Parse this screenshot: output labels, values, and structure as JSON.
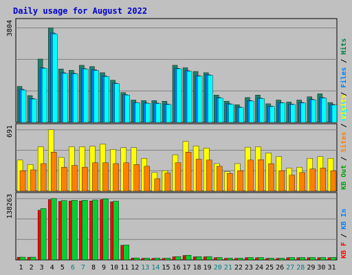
{
  "title": "Daily usage for August 2022",
  "colors": {
    "background": "#c0c0c0",
    "title": "#0000cc",
    "hits": "#008040",
    "files": "#0080ff",
    "pages": "#00ffff",
    "visits": "#ffff00",
    "sites": "#ff8000",
    "kb_in": "#0080ff",
    "kb_out": "#00a000",
    "kb_f": "#ff0000",
    "weekend_label": "#008080"
  },
  "chart_data": [
    {
      "type": "bar",
      "panel": "hits-files-pages",
      "max_label": "3804",
      "categories": [
        "1",
        "2",
        "3",
        "4",
        "5",
        "6",
        "7",
        "8",
        "9",
        "10",
        "11",
        "12",
        "13",
        "14",
        "15",
        "16",
        "17",
        "18",
        "19",
        "20",
        "21",
        "22",
        "23",
        "24",
        "25",
        "26",
        "27",
        "28",
        "29",
        "30",
        "31"
      ],
      "weekend_days": [
        "6",
        "7",
        "13",
        "14",
        "20",
        "21",
        "27",
        "28"
      ],
      "right_labels": [
        {
          "text": "Hits",
          "color": "#008040"
        },
        {
          "text": "Files",
          "color": "#0080ff"
        },
        {
          "text": "Pages",
          "color": "#00ffff"
        }
      ],
      "ylim": [
        0,
        3804
      ],
      "series": [
        {
          "name": "Hits",
          "color": "#20806a",
          "values": [
            1450,
            1080,
            2550,
            3804,
            2150,
            2100,
            2300,
            2250,
            2000,
            1700,
            1200,
            900,
            880,
            880,
            850,
            2300,
            2200,
            2050,
            2000,
            1100,
            850,
            710,
            1000,
            1100,
            750,
            900,
            820,
            900,
            1030,
            1150,
            800
          ]
        },
        {
          "name": "Files",
          "color": "#0080ff",
          "values": [
            1330,
            960,
            2200,
            3600,
            2000,
            1980,
            2170,
            2120,
            1870,
            1580,
            1120,
            800,
            780,
            780,
            740,
            2180,
            2080,
            1880,
            1920,
            1000,
            750,
            620,
            880,
            980,
            660,
            800,
            740,
            800,
            930,
            1000,
            720
          ]
        },
        {
          "name": "Pages",
          "color": "#00ffff",
          "values": [
            1300,
            940,
            2180,
            3560,
            1970,
            1960,
            2150,
            2090,
            1850,
            1560,
            1100,
            790,
            770,
            760,
            720,
            2160,
            2060,
            1860,
            1900,
            980,
            730,
            600,
            860,
            960,
            640,
            780,
            720,
            780,
            910,
            980,
            700
          ]
        }
      ]
    },
    {
      "type": "bar",
      "panel": "visits-sites",
      "max_label": "691",
      "categories": [
        "1",
        "2",
        "3",
        "4",
        "5",
        "6",
        "7",
        "8",
        "9",
        "10",
        "11",
        "12",
        "13",
        "14",
        "15",
        "16",
        "17",
        "18",
        "19",
        "20",
        "21",
        "22",
        "23",
        "24",
        "25",
        "26",
        "27",
        "28",
        "29",
        "30",
        "31"
      ],
      "right_labels": [
        {
          "text": "Visits",
          "color": "#ffff00"
        },
        {
          "text": "Sites",
          "color": "#ff8000"
        },
        {
          "text": "KB Out",
          "color": "#00a000"
        }
      ],
      "ylim": [
        0,
        691
      ],
      "series": [
        {
          "name": "Visits",
          "color": "#ffff00",
          "values": [
            350,
            300,
            500,
            691,
            380,
            500,
            500,
            505,
            530,
            470,
            490,
            490,
            370,
            210,
            230,
            410,
            560,
            510,
            485,
            310,
            220,
            310,
            495,
            500,
            430,
            390,
            260,
            270,
            370,
            390,
            370
          ]
        },
        {
          "name": "Sites",
          "color": "#ff8000",
          "values": [
            230,
            240,
            310,
            440,
            270,
            290,
            270,
            320,
            320,
            310,
            320,
            300,
            280,
            140,
            205,
            320,
            440,
            360,
            350,
            280,
            200,
            230,
            350,
            355,
            310,
            230,
            180,
            210,
            250,
            260,
            230
          ]
        }
      ]
    },
    {
      "type": "bar",
      "panel": "kb",
      "max_label": "138263",
      "categories": [
        "1",
        "2",
        "3",
        "4",
        "5",
        "6",
        "7",
        "8",
        "9",
        "10",
        "11",
        "12",
        "13",
        "14",
        "15",
        "16",
        "17",
        "18",
        "19",
        "20",
        "21",
        "22",
        "23",
        "24",
        "25",
        "26",
        "27",
        "28",
        "29",
        "30",
        "31"
      ],
      "right_labels": [
        {
          "text": "KB In",
          "color": "#0080ff"
        },
        {
          "text": "KB F",
          "color": "#ff0000"
        }
      ],
      "ylim": [
        0,
        138263
      ],
      "series": [
        {
          "name": "KB F",
          "color": "#ff0000",
          "values": [
            6000,
            6000,
            112000,
            136000,
            132000,
            133000,
            133000,
            133000,
            136000,
            131000,
            33000,
            4000,
            3500,
            3500,
            3500,
            7000,
            10000,
            7000,
            7000,
            5000,
            3500,
            3500,
            5000,
            5000,
            3500,
            3500,
            5000,
            5000,
            5000,
            5000,
            5000
          ]
        },
        {
          "name": "KB In",
          "color": "#00d030",
          "values": [
            6200,
            6200,
            116000,
            138263,
            134000,
            134500,
            134500,
            135000,
            137500,
            132500,
            33500,
            4500,
            4000,
            4000,
            4000,
            7500,
            10500,
            7500,
            7500,
            5500,
            4000,
            4000,
            5500,
            5500,
            4000,
            4000,
            5500,
            5500,
            5500,
            5500,
            5500
          ]
        }
      ]
    }
  ]
}
